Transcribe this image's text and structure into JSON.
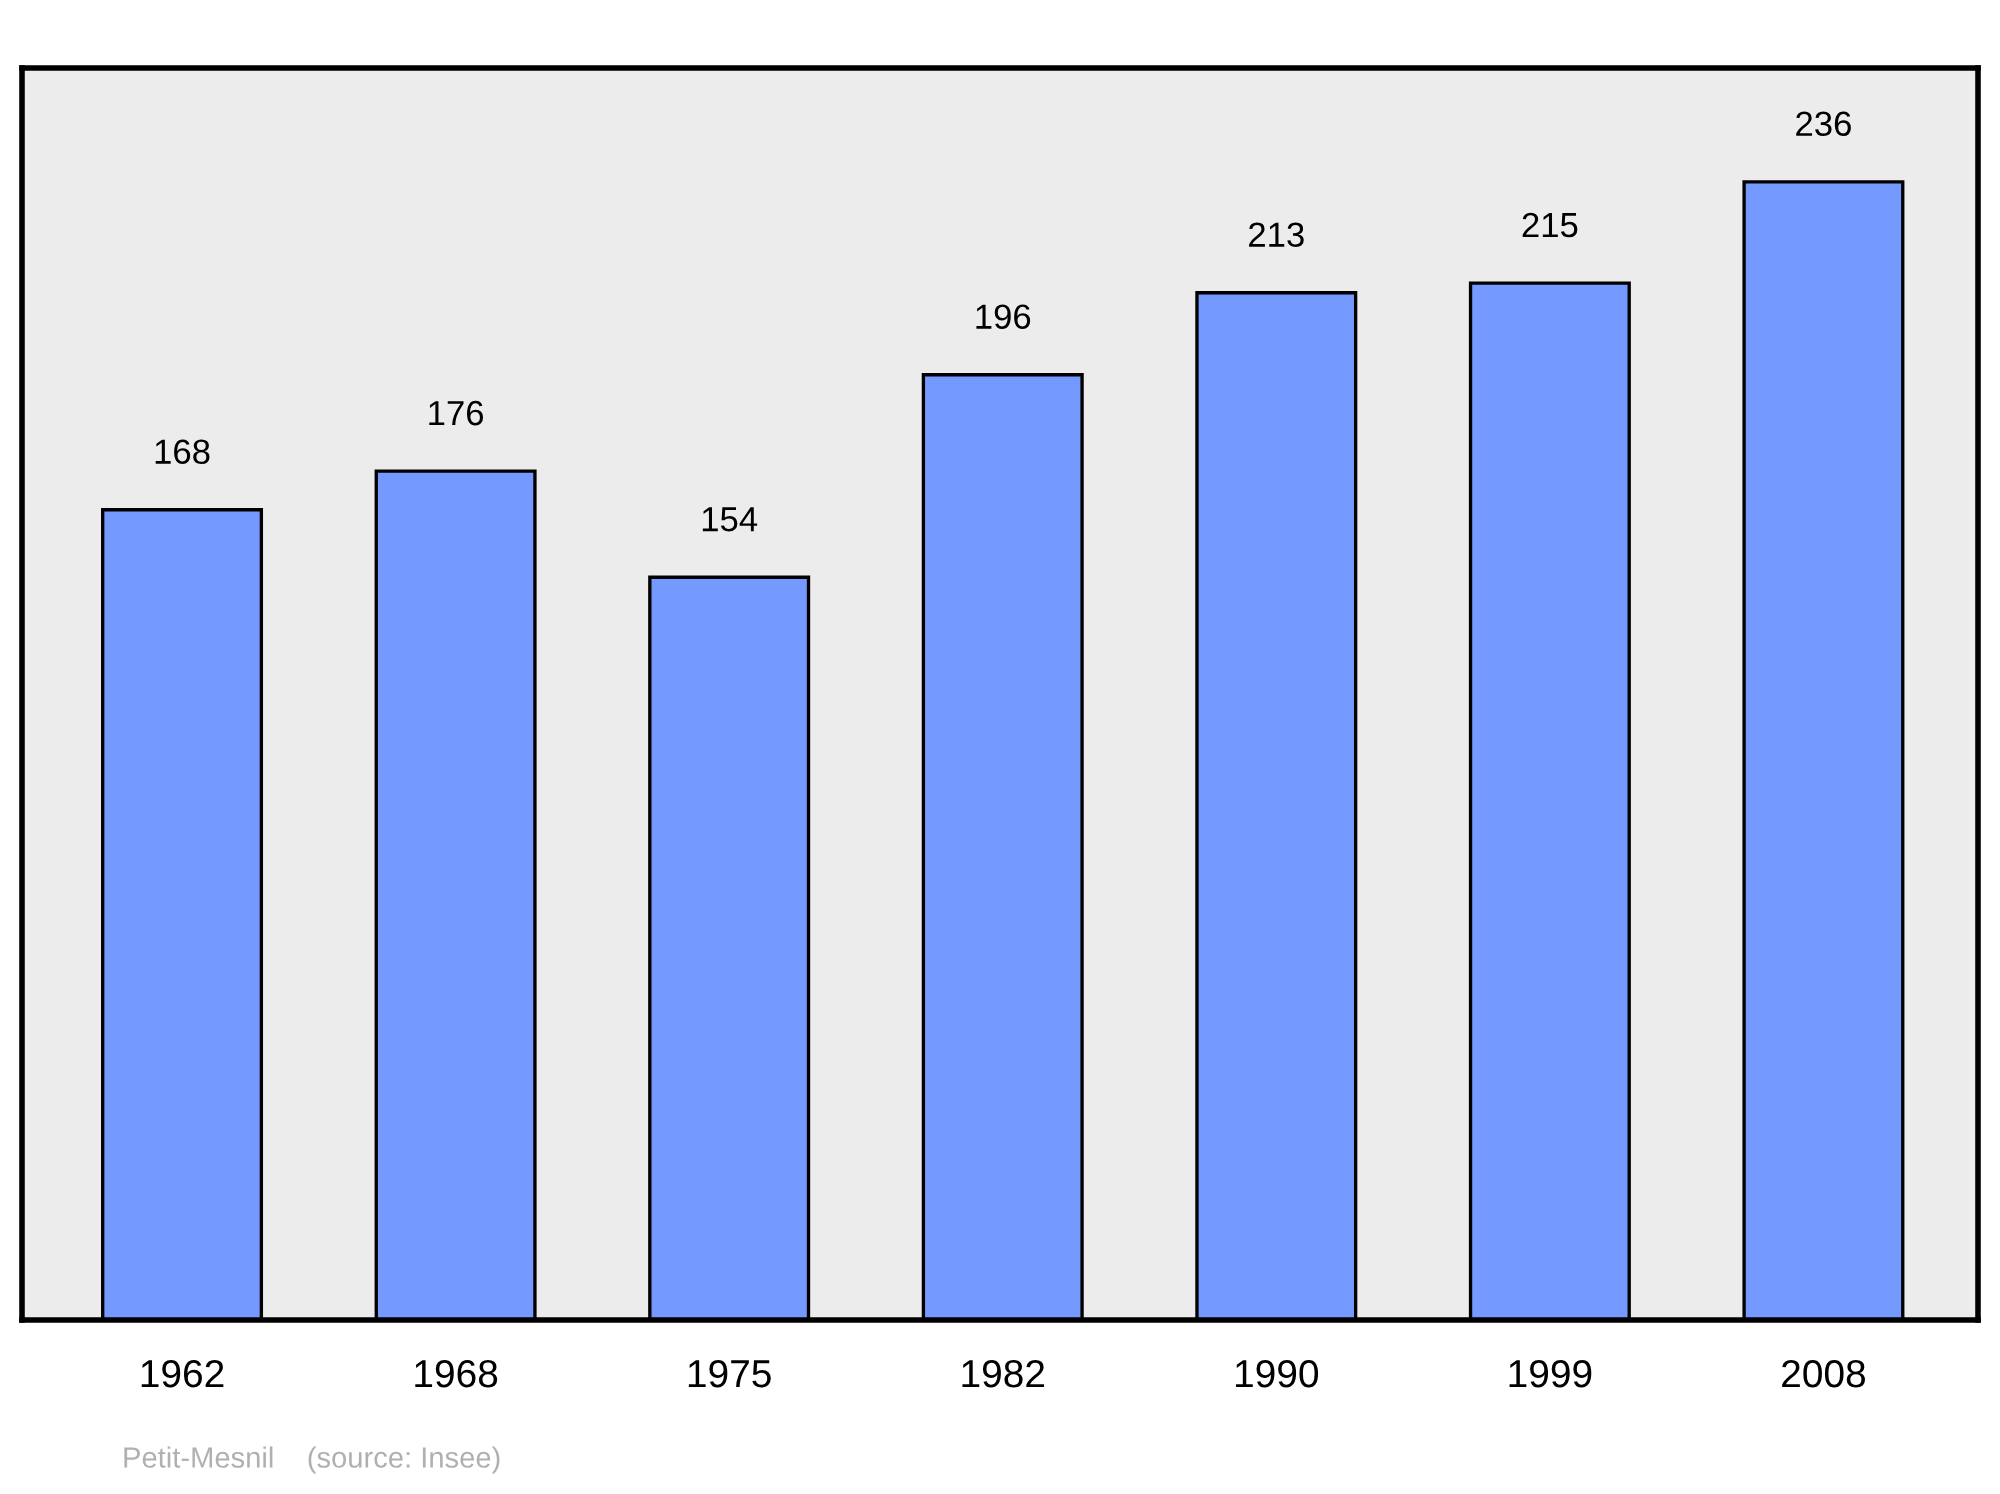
{
  "chart_data": {
    "type": "bar",
    "categories": [
      "1962",
      "1968",
      "1975",
      "1982",
      "1990",
      "1999",
      "2008"
    ],
    "values": [
      168,
      176,
      154,
      196,
      213,
      215,
      236
    ],
    "color": "#7499ff",
    "data_labels": true,
    "grid": false,
    "legend": false,
    "tick_labels": "x",
    "annotations": [
      "Petit-Mesnil    (source: Insee)"
    ]
  }
}
